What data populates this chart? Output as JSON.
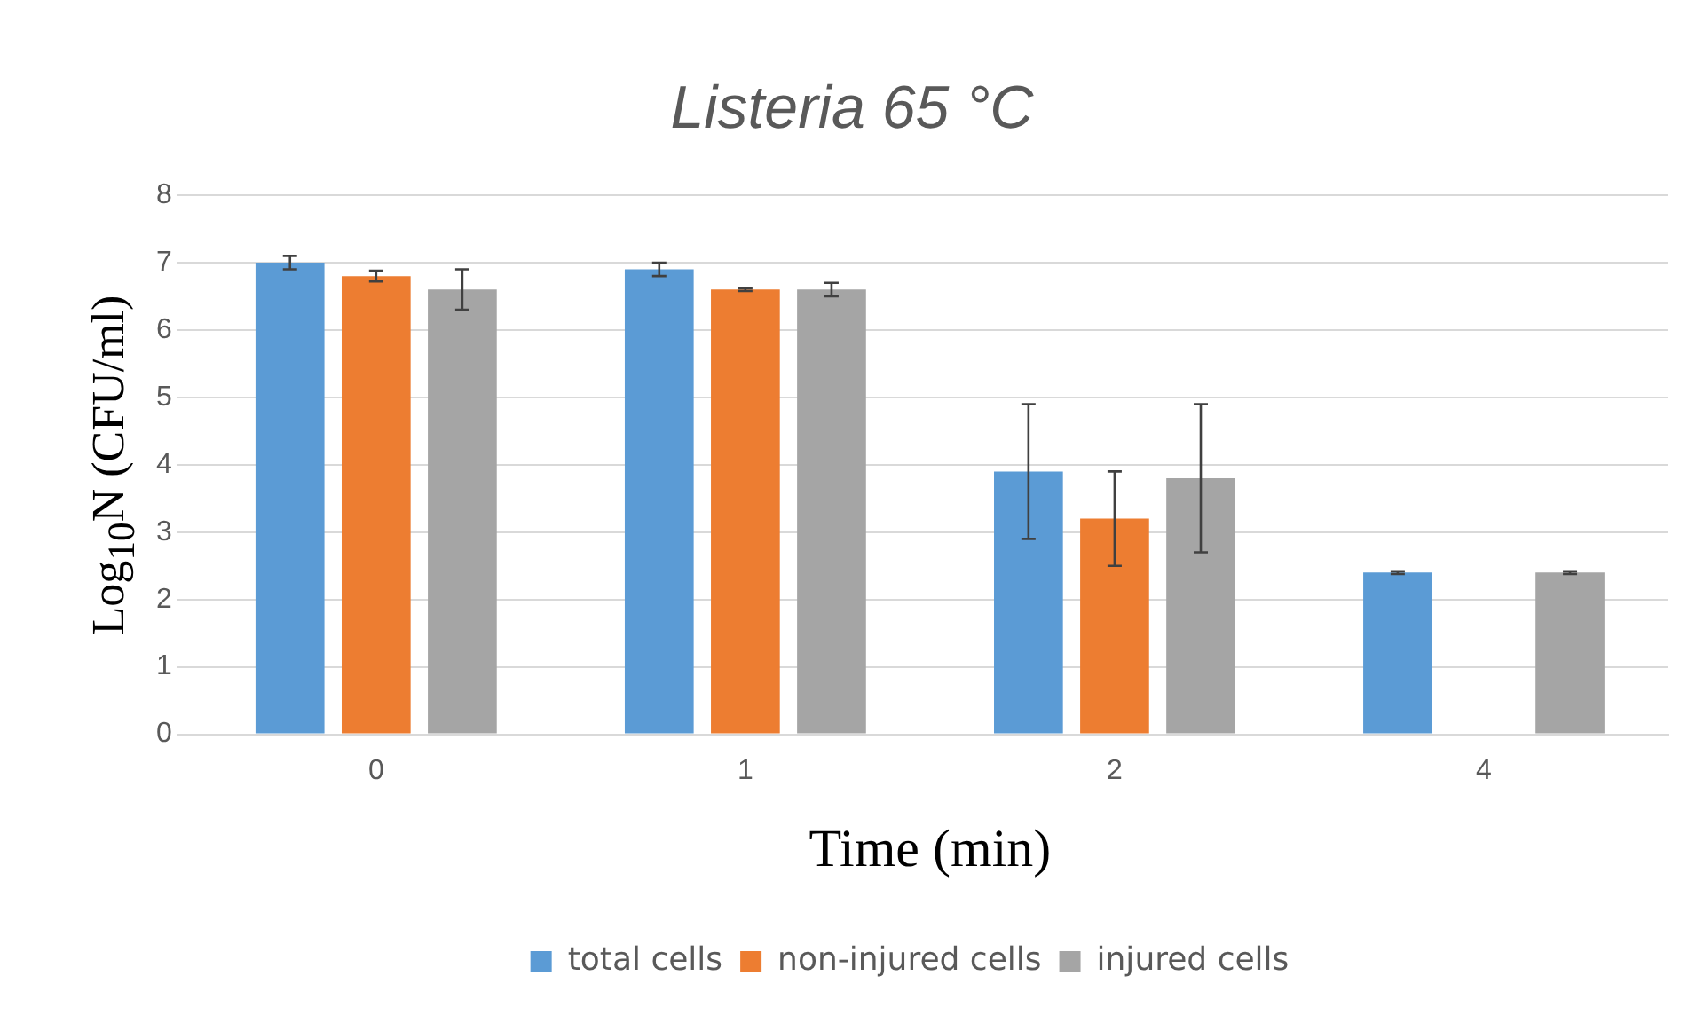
{
  "chart_data": {
    "type": "bar",
    "title": "Listeria 65 °C",
    "xlabel": "Time (min)",
    "ylabel": "Log$_{10}$N (CFU/ml)",
    "categories": [
      "0",
      "1",
      "2",
      "4"
    ],
    "series": [
      {
        "name": "total cells",
        "color": "#5b9bd5",
        "values": [
          7.0,
          6.9,
          3.9,
          2.4
        ],
        "errors": [
          0.1,
          0.1,
          1.0,
          0.02
        ]
      },
      {
        "name": "non-injured cells",
        "color": "#ed7d31",
        "values": [
          6.8,
          6.6,
          3.2,
          null
        ],
        "errors": [
          0.08,
          0.02,
          0.7,
          null
        ]
      },
      {
        "name": "injured cells",
        "color": "#a5a5a5",
        "values": [
          6.6,
          6.6,
          3.8,
          2.4
        ],
        "errors": [
          0.3,
          0.1,
          1.1,
          0.02
        ]
      }
    ],
    "ylim": [
      0,
      8
    ],
    "yticks": [
      0,
      1,
      2,
      3,
      4,
      5,
      6,
      7,
      8
    ],
    "grid": "y",
    "legend": "bottom"
  }
}
